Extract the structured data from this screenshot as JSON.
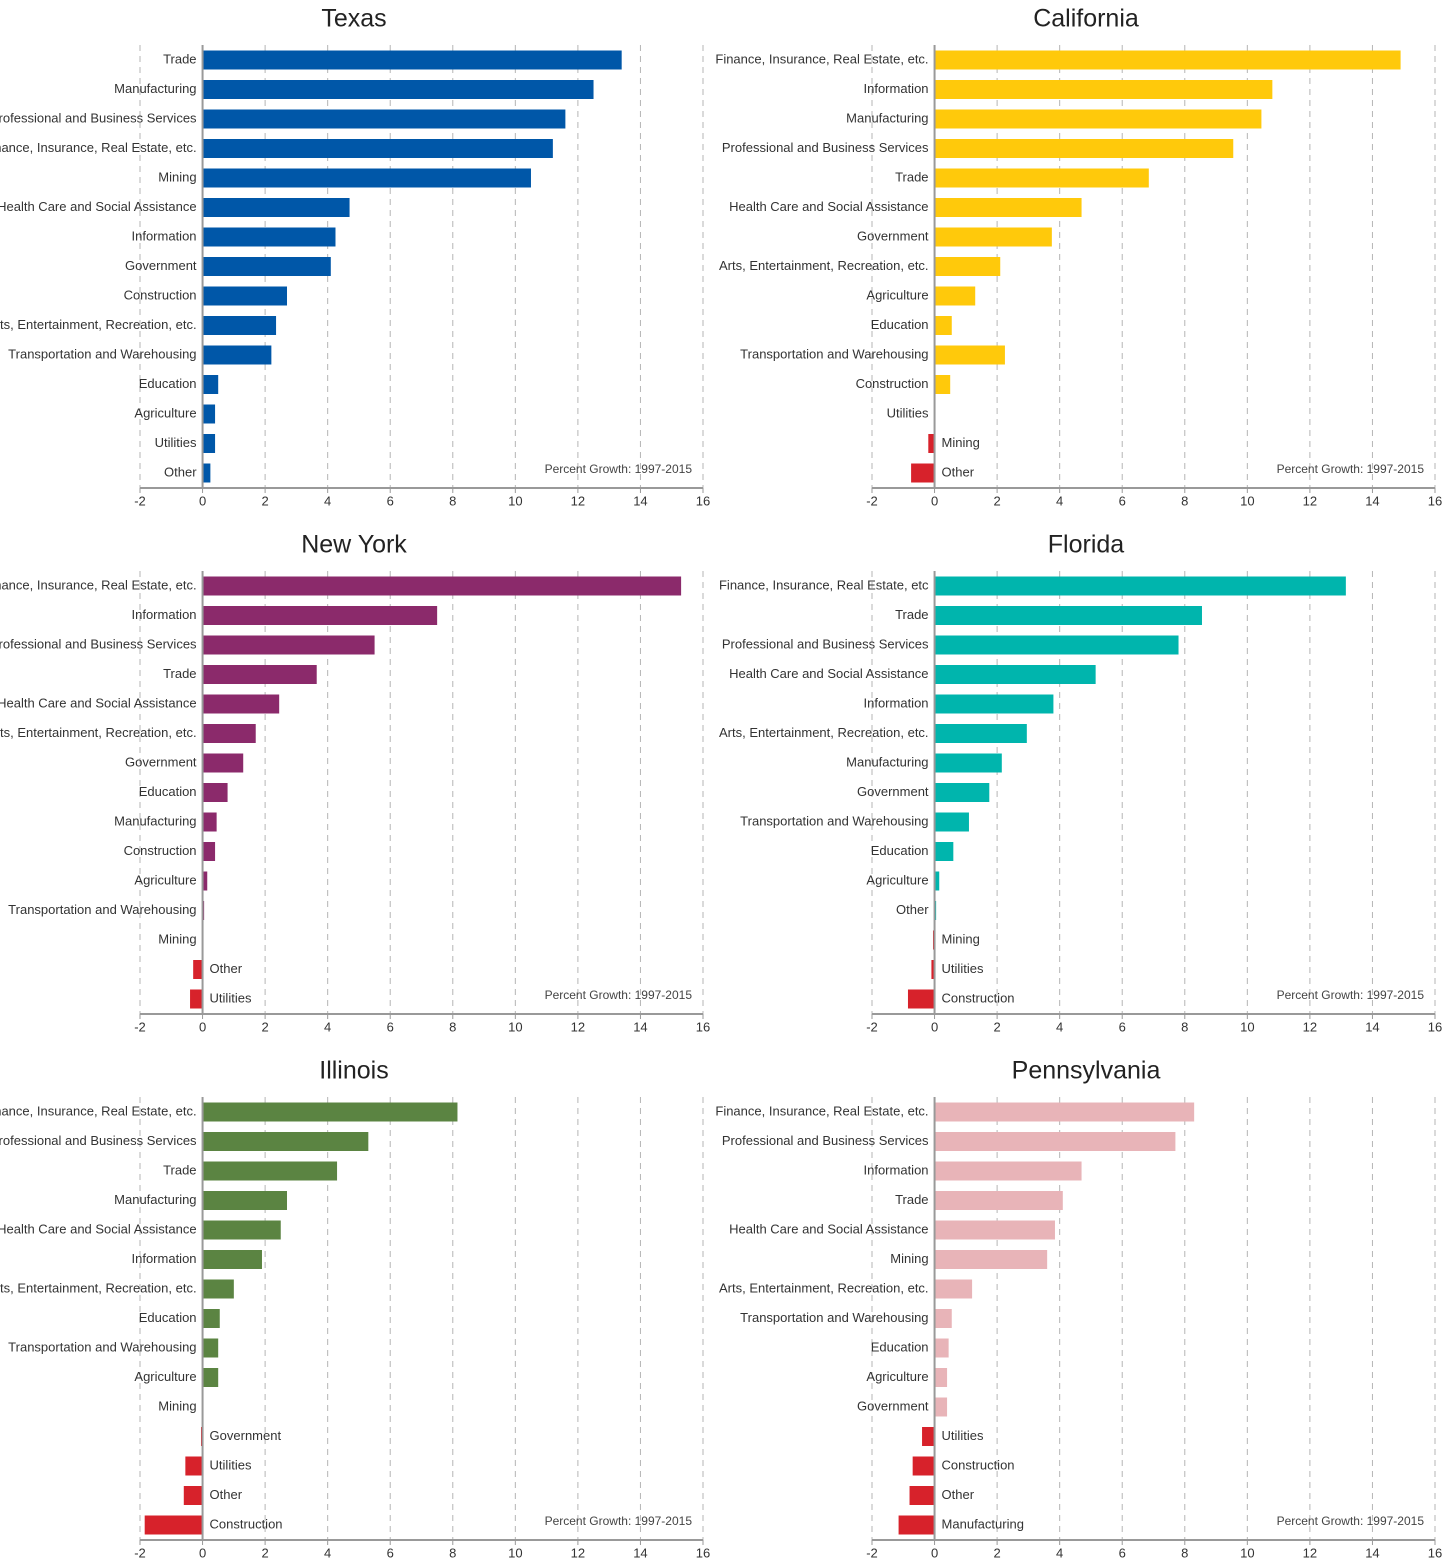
{
  "chart_data": [
    {
      "type": "bar",
      "orientation": "horizontal",
      "title": "Texas",
      "annotation": "Percent Growth: 1997-2015",
      "categories": [
        "Trade",
        "Manufacturing",
        "Professional and Business Services",
        "Finance, Insurance, Real Estate, etc.",
        "Mining",
        "Health Care and Social Assistance",
        "Information",
        "Government",
        "Construction",
        "Arts, Entertainment, Recreation, etc.",
        "Transportation and Warehousing",
        "Education",
        "Agriculture",
        "Utilities",
        "Other"
      ],
      "values": [
        13.4,
        12.5,
        11.6,
        11.2,
        10.5,
        4.7,
        4.25,
        4.1,
        2.7,
        2.35,
        2.2,
        0.5,
        0.4,
        0.4,
        0.25
      ],
      "color": "#0057a8",
      "negative_color": "#d7222b",
      "xlim": [
        -2,
        16
      ],
      "xticks": [
        -2,
        0,
        2,
        4,
        6,
        8,
        10,
        12,
        14,
        16
      ],
      "grid": true
    },
    {
      "type": "bar",
      "orientation": "horizontal",
      "title": "California",
      "annotation": "Percent Growth: 1997-2015",
      "categories": [
        "Finance, Insurance, Real Estate, etc.",
        "Information",
        "Manufacturing",
        "Professional and Business Services",
        "Trade",
        "Health Care and Social Assistance",
        "Government",
        "Arts, Entertainment, Recreation, etc.",
        "Agriculture",
        "Education",
        "Transportation and Warehousing",
        "Construction",
        "Utilities",
        "Mining",
        "Other"
      ],
      "values": [
        14.9,
        10.8,
        10.45,
        9.55,
        6.85,
        4.7,
        3.75,
        2.1,
        1.3,
        0.55,
        2.25,
        0.5,
        0,
        -0.2,
        -0.75
      ],
      "color": "#ffc90b",
      "negative_color": "#d7222b",
      "xlim": [
        -2,
        16
      ],
      "xticks": [
        -2,
        0,
        2,
        4,
        6,
        8,
        10,
        12,
        14,
        16
      ],
      "grid": true
    },
    {
      "type": "bar",
      "orientation": "horizontal",
      "title": "New York",
      "annotation": "Percent Growth: 1997-2015",
      "categories": [
        "Finance, Insurance, Real Estate, etc.",
        "Information",
        "Professional and Business Services",
        "Trade",
        "Health Care and Social Assistance",
        "Arts, Entertainment, Recreation, etc.",
        "Government",
        "Education",
        "Manufacturing",
        "Construction",
        "Agriculture",
        "Transportation and Warehousing",
        "Mining",
        "Other",
        "Utilities"
      ],
      "values": [
        15.3,
        7.5,
        5.5,
        3.65,
        2.45,
        1.7,
        1.3,
        0.8,
        0.45,
        0.4,
        0.15,
        0.05,
        0,
        -0.3,
        -0.4
      ],
      "color": "#8b2a6b",
      "negative_color": "#d7222b",
      "xlim": [
        -2,
        16
      ],
      "xticks": [
        -2,
        0,
        2,
        4,
        6,
        8,
        10,
        12,
        14,
        16
      ],
      "grid": true
    },
    {
      "type": "bar",
      "orientation": "horizontal",
      "title": "Florida",
      "annotation": "Percent Growth: 1997-2015",
      "categories": [
        "Finance, Insurance, Real Estate, etc",
        "Trade",
        "Professional and Business Services",
        "Health Care and Social Assistance",
        "Information",
        "Arts, Entertainment, Recreation, etc.",
        "Manufacturing",
        "Government",
        "Transportation and Warehousing",
        "Education",
        "Agriculture",
        "Other",
        "Mining",
        "Utilities",
        "Construction"
      ],
      "values": [
        13.15,
        8.55,
        7.8,
        5.15,
        3.8,
        2.95,
        2.15,
        1.75,
        1.1,
        0.6,
        0.15,
        0.05,
        -0.05,
        -0.1,
        -0.85
      ],
      "color": "#00b5ad",
      "negative_color": "#d7222b",
      "xlim": [
        -2,
        16
      ],
      "xticks": [
        -2,
        0,
        2,
        4,
        6,
        8,
        10,
        12,
        14,
        16
      ],
      "grid": true
    },
    {
      "type": "bar",
      "orientation": "horizontal",
      "title": "Illinois",
      "annotation": "Percent Growth: 1997-2015",
      "categories": [
        "Finance, Insurance, Real Estate, etc.",
        "Professional and Business Services",
        "Trade",
        "Manufacturing",
        "Health Care and Social Assistance",
        "Information",
        "Arts, Entertainment, Recreation, etc.",
        "Education",
        "Transportation and Warehousing",
        "Agriculture",
        "Mining",
        "Government",
        "Utilities",
        "Other",
        "Construction"
      ],
      "values": [
        8.15,
        5.3,
        4.3,
        2.7,
        2.5,
        1.9,
        1.0,
        0.55,
        0.5,
        0.5,
        0,
        -0.05,
        -0.55,
        -0.6,
        -1.85
      ],
      "color": "#5b8442",
      "negative_color": "#d7222b",
      "xlim": [
        -2,
        16
      ],
      "xticks": [
        -2,
        0,
        2,
        4,
        6,
        8,
        10,
        12,
        14,
        16
      ],
      "grid": true
    },
    {
      "type": "bar",
      "orientation": "horizontal",
      "title": "Pennsylvania",
      "annotation": "Percent Growth: 1997-2015",
      "categories": [
        "Finance, Insurance, Real Estate, etc.",
        "Professional and Business Services",
        "Information",
        "Trade",
        "Health Care and Social Assistance",
        "Mining",
        "Arts, Entertainment, Recreation, etc.",
        "Transportation and Warehousing",
        "Education",
        "Agriculture",
        "Government",
        "Utilities",
        "Construction",
        "Other",
        "Manufacturing"
      ],
      "values": [
        8.3,
        7.7,
        4.7,
        4.1,
        3.85,
        3.6,
        1.2,
        0.55,
        0.45,
        0.4,
        0.4,
        -0.4,
        -0.7,
        -0.8,
        -1.15
      ],
      "color": "#e8b4b8",
      "negative_color": "#d7222b",
      "xlim": [
        -2,
        16
      ],
      "xticks": [
        -2,
        0,
        2,
        4,
        6,
        8,
        10,
        12,
        14,
        16
      ],
      "grid": true
    }
  ]
}
